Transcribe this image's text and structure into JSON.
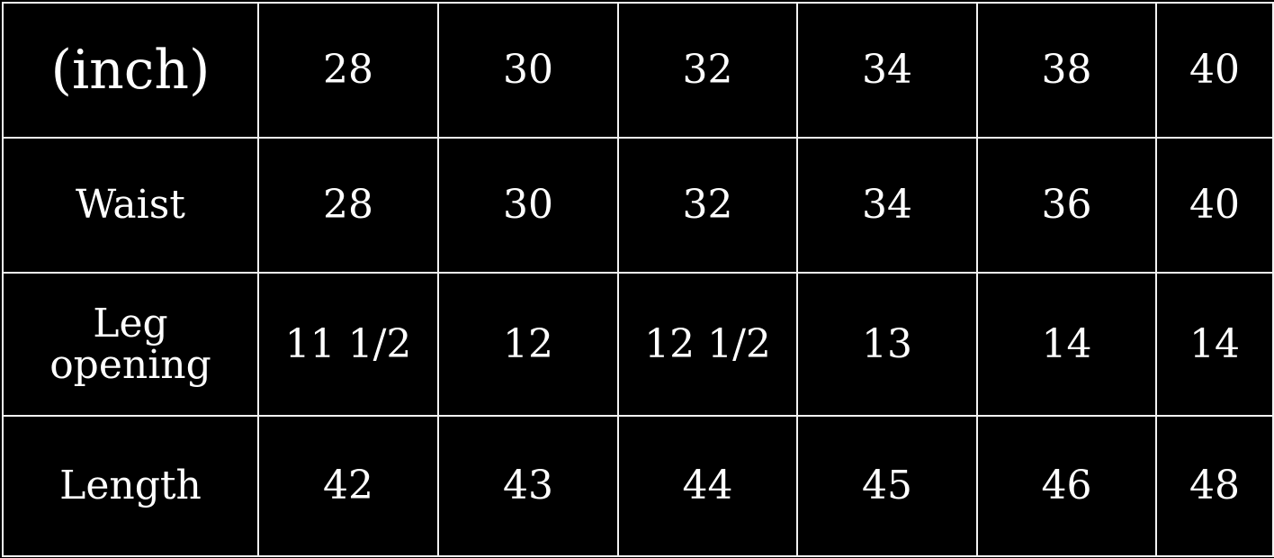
{
  "colors": {
    "background": "#000000",
    "text": "#ffffff",
    "grid": "#f2f2f2"
  },
  "table": {
    "rows": [
      {
        "label": "(inch)",
        "values": [
          "28",
          "30",
          "32",
          "34",
          "38",
          "40"
        ]
      },
      {
        "label": "Waist",
        "values": [
          "28",
          "30",
          "32",
          "34",
          "36",
          "40"
        ]
      },
      {
        "label": "Leg\nopening",
        "values": [
          "11 1/2",
          "12",
          "12 1/2",
          "13",
          "14",
          "14"
        ]
      },
      {
        "label": "Length",
        "values": [
          "42",
          "43",
          "44",
          "45",
          "46",
          "48"
        ]
      }
    ]
  }
}
